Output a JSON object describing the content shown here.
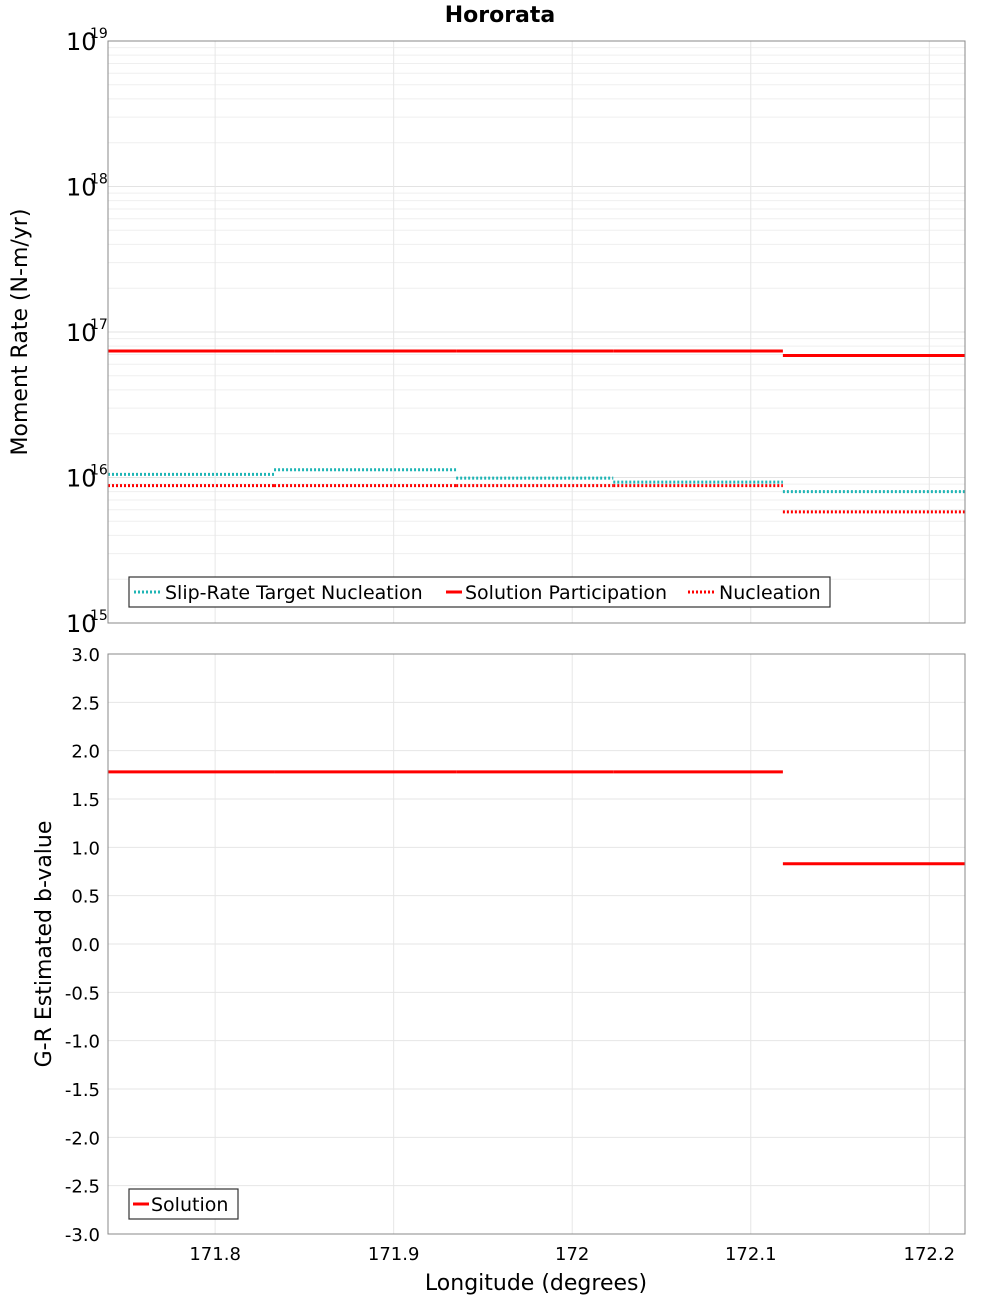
{
  "chart_data": [
    {
      "type": "line",
      "title": "Hororata",
      "xlabel": "Longitude (degrees)",
      "ylabel": "Moment Rate (N-m/yr)",
      "yscale": "log",
      "xlim": [
        171.74,
        172.22
      ],
      "ylim": [
        1000000000000000.0,
        1e+19
      ],
      "y_tick_base": "10",
      "y_tick_exponents": [
        "15",
        "16",
        "17",
        "18",
        "19"
      ],
      "x_ticks": [
        171.8,
        171.9,
        172.0,
        172.1,
        172.2
      ],
      "x_tick_labels": [
        "171.8",
        "171.9",
        "172",
        "172.1",
        "172.2"
      ],
      "series": [
        {
          "name": "Slip-Rate Target Nucleation",
          "color": "#1fb5b5",
          "style": "dotted",
          "segments": [
            {
              "x0": 171.74,
              "x1": 171.833,
              "y": 1.05e+16
            },
            {
              "x0": 171.833,
              "x1": 171.935,
              "y": 1.13e+16
            },
            {
              "x0": 171.935,
              "x1": 172.023,
              "y": 9900000000000000.0
            },
            {
              "x0": 172.023,
              "x1": 172.118,
              "y": 9300000000000000.0
            },
            {
              "x0": 172.118,
              "x1": 172.22,
              "y": 8000000000000000.0
            }
          ]
        },
        {
          "name": "Solution Participation",
          "color": "#ff0000",
          "style": "solid",
          "segments": [
            {
              "x0": 171.74,
              "x1": 171.833,
              "y": 7.4e+16
            },
            {
              "x0": 171.833,
              "x1": 171.935,
              "y": 7.4e+16
            },
            {
              "x0": 171.935,
              "x1": 172.023,
              "y": 7.4e+16
            },
            {
              "x0": 172.023,
              "x1": 172.118,
              "y": 7.4e+16
            },
            {
              "x0": 172.118,
              "x1": 172.22,
              "y": 6.9e+16
            }
          ]
        },
        {
          "name": "Nucleation",
          "color": "#ff0000",
          "style": "dotted",
          "segments": [
            {
              "x0": 171.74,
              "x1": 171.833,
              "y": 8800000000000000.0
            },
            {
              "x0": 171.833,
              "x1": 171.935,
              "y": 8800000000000000.0
            },
            {
              "x0": 171.935,
              "x1": 172.023,
              "y": 8800000000000000.0
            },
            {
              "x0": 172.023,
              "x1": 172.118,
              "y": 8800000000000000.0
            },
            {
              "x0": 172.118,
              "x1": 172.22,
              "y": 5800000000000000.0
            }
          ]
        }
      ],
      "legend": [
        "Slip-Rate Target Nucleation",
        "Solution Participation",
        "Nucleation"
      ]
    },
    {
      "type": "line",
      "title": "",
      "xlabel": "Longitude (degrees)",
      "ylabel": "G-R Estimated b-value",
      "yscale": "linear",
      "xlim": [
        171.74,
        172.22
      ],
      "ylim": [
        -3.0,
        3.0
      ],
      "y_ticks": [
        -3.0,
        -2.5,
        -2.0,
        -1.5,
        -1.0,
        -0.5,
        0.0,
        0.5,
        1.0,
        1.5,
        2.0,
        2.5,
        3.0
      ],
      "y_tick_labels": [
        "-3.0",
        "-2.5",
        "-2.0",
        "-1.5",
        "-1.0",
        "-0.5",
        "0.0",
        "0.5",
        "1.0",
        "1.5",
        "2.0",
        "2.5",
        "3.0"
      ],
      "x_ticks": [
        171.8,
        171.9,
        172.0,
        172.1,
        172.2
      ],
      "x_tick_labels": [
        "171.8",
        "171.9",
        "172",
        "172.1",
        "172.2"
      ],
      "series": [
        {
          "name": "Solution",
          "color": "#ff0000",
          "style": "solid",
          "segments": [
            {
              "x0": 171.74,
              "x1": 171.833,
              "y": 1.78
            },
            {
              "x0": 171.833,
              "x1": 171.935,
              "y": 1.78
            },
            {
              "x0": 171.935,
              "x1": 172.023,
              "y": 1.78
            },
            {
              "x0": 172.023,
              "x1": 172.118,
              "y": 1.78
            },
            {
              "x0": 172.118,
              "x1": 172.22,
              "y": 0.83
            }
          ]
        }
      ],
      "legend": [
        "Solution"
      ]
    }
  ]
}
